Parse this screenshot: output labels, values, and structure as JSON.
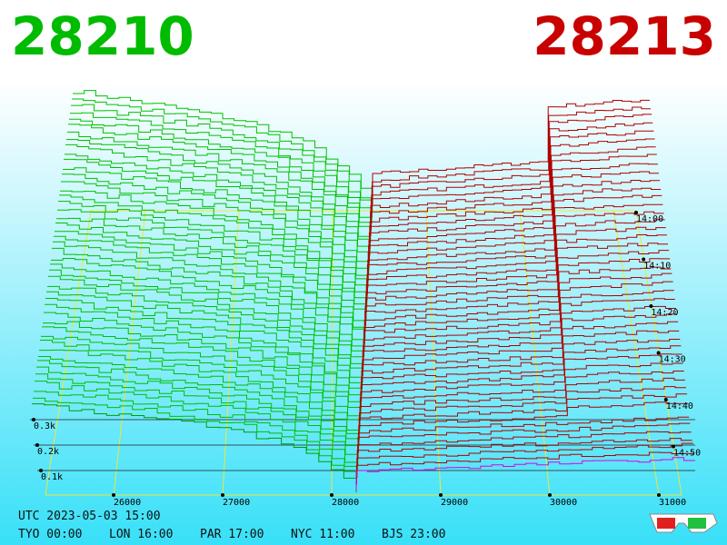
{
  "header": {
    "bid": "28210",
    "ask": "28213"
  },
  "axes": {
    "price_labels": [
      "26000",
      "27000",
      "28000",
      "29000",
      "30000",
      "31000"
    ],
    "time_labels": [
      "14:00",
      "14:10",
      "14:20",
      "14:30",
      "14:40",
      "14:50"
    ],
    "volume_labels": [
      "0.3k",
      "0.2k",
      "0.1k"
    ]
  },
  "footer": {
    "utc": "UTC 2023-05-03 15:00",
    "cities": [
      "TYO 00:00",
      "LON 16:00",
      "PAR 17:00",
      "NYC 11:00",
      "BJS 23:00"
    ]
  }
}
